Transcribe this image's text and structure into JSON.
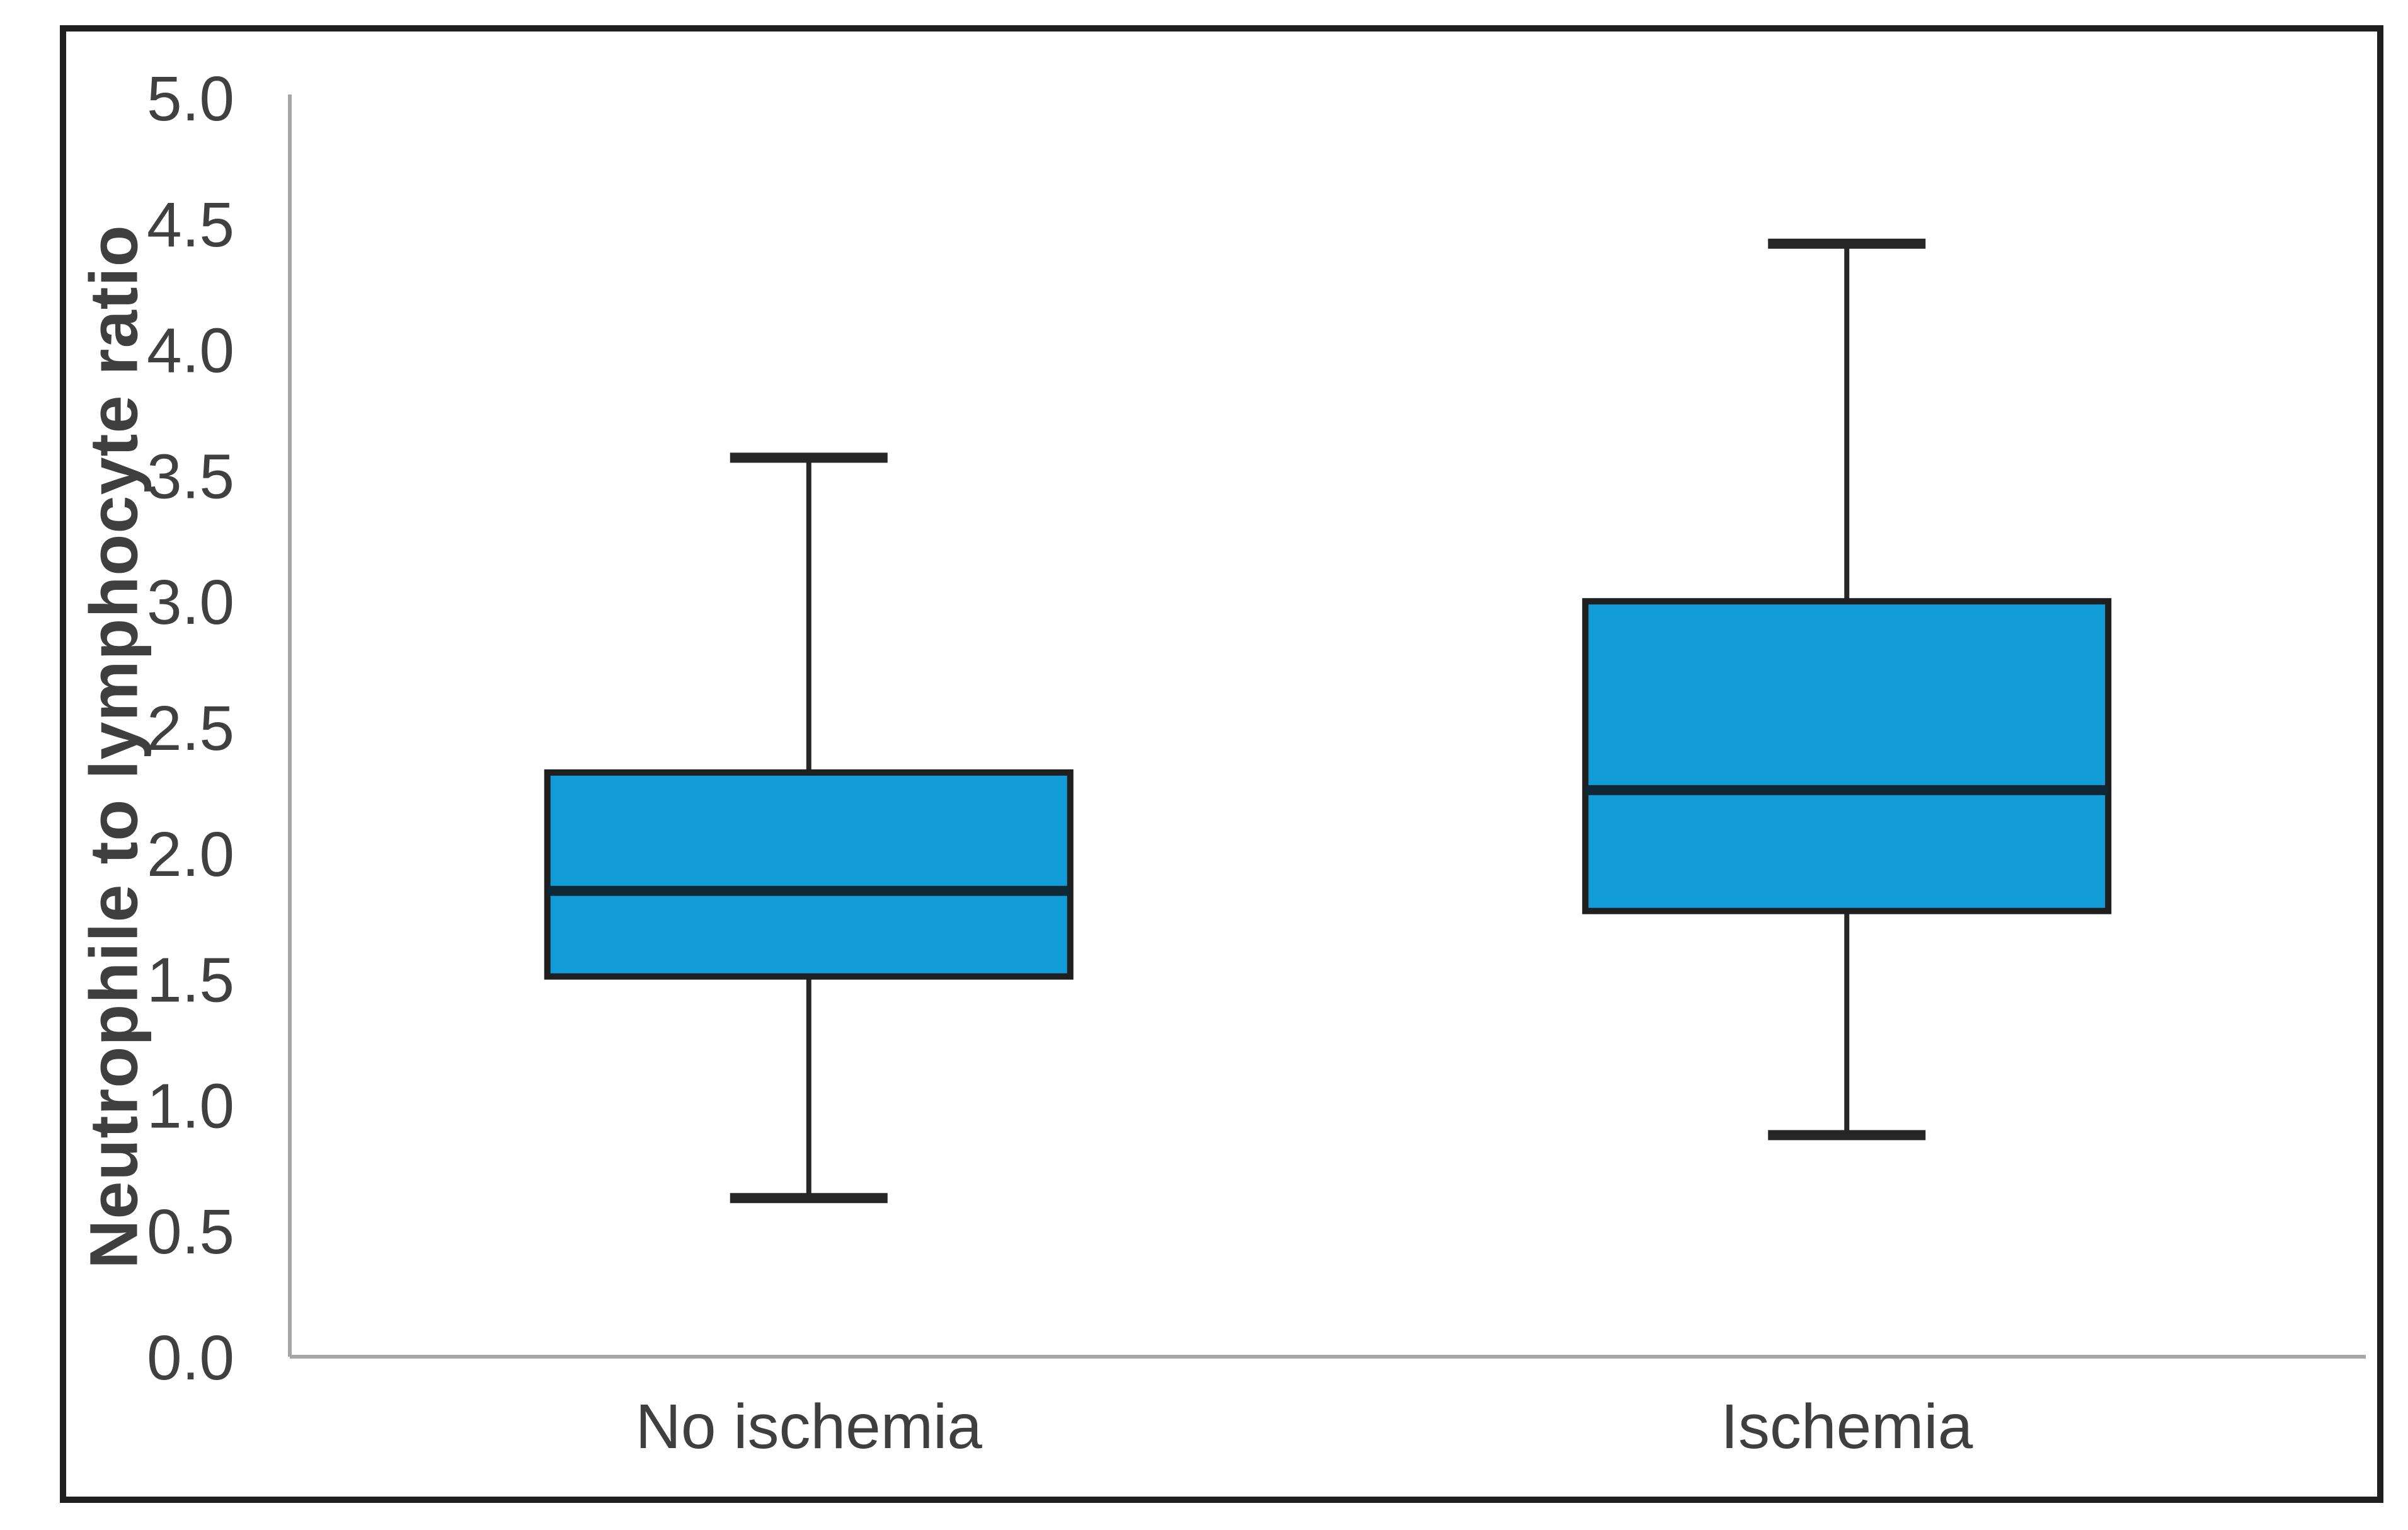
{
  "figure": {
    "background_color": "#ffffff",
    "border_color": "#1f1f1f"
  },
  "chart_data": {
    "type": "boxplot",
    "ylabel": "Neutrophile to lymphocyte ratio",
    "xlabel": "",
    "ylim": [
      0.0,
      5.0
    ],
    "ytick_step": 0.5,
    "ytick_labels": [
      "0.0",
      "0.5",
      "1.0",
      "1.5",
      "2.0",
      "2.5",
      "3.0",
      "3.5",
      "4.0",
      "4.5",
      "5.0"
    ],
    "categories": [
      "No ischemia",
      "Ischemia"
    ],
    "series": [
      {
        "name": "No ischemia",
        "whisker_low": 0.63,
        "q1": 1.51,
        "median": 1.85,
        "q3": 2.32,
        "whisker_high": 3.57
      },
      {
        "name": "Ischemia",
        "whisker_low": 0.88,
        "q1": 1.77,
        "median": 2.25,
        "q3": 3.0,
        "whisker_high": 4.42
      }
    ],
    "grid": false,
    "legend": false,
    "box_fill_color": "#119BD7",
    "box_edge_color": "#1f1f1f",
    "median_line_color": "#0d2735",
    "whisker_color": "#262626",
    "axis_line_color": "#a6a6a6",
    "tick_label_color": "#404040",
    "category_label_color": "#3f3f3f"
  }
}
